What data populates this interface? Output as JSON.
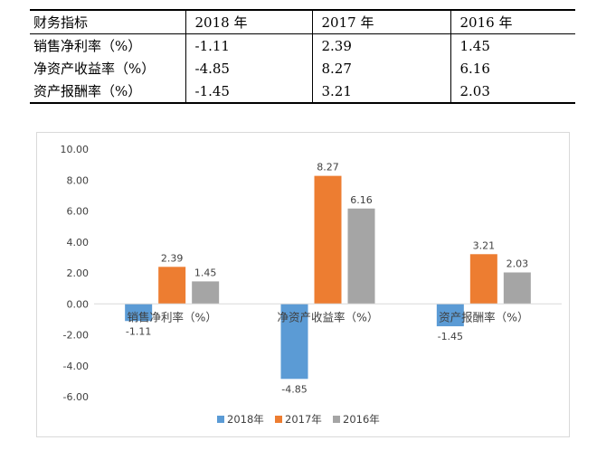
{
  "table": {
    "headers": [
      "财务指标",
      "2018 年",
      "2017 年",
      "2016 年"
    ],
    "rows": [
      [
        "销售净利率（%）",
        "-1.11",
        "2.39",
        "1.45"
      ],
      [
        "净资产收益率（%）",
        "-4.85",
        "8.27",
        "6.16"
      ],
      [
        "资产报酬率（%）",
        "-1.45",
        "3.21",
        "2.03"
      ]
    ]
  },
  "chart_data": {
    "type": "bar",
    "categories": [
      "销售净利率（%）",
      "净资产收益率（%）",
      "资产报酬率（%）"
    ],
    "series": [
      {
        "name": "2018年",
        "values": [
          -1.11,
          -4.85,
          -1.45
        ],
        "color": "#5b9bd5"
      },
      {
        "name": "2017年",
        "values": [
          2.39,
          8.27,
          3.21
        ],
        "color": "#ed7d31"
      },
      {
        "name": "2016年",
        "values": [
          1.45,
          6.16,
          2.03
        ],
        "color": "#a5a5a5"
      }
    ],
    "ylim": [
      -6.0,
      10.0
    ],
    "y_ticks": [
      "-6.00",
      "-4.00",
      "-2.00",
      "0.00",
      "2.00",
      "4.00",
      "6.00",
      "8.00",
      "10.00"
    ],
    "data_labels": true,
    "grid": false,
    "legend_position": "bottom",
    "text_color": "#404040",
    "axis_color": "#d9d9d9"
  }
}
